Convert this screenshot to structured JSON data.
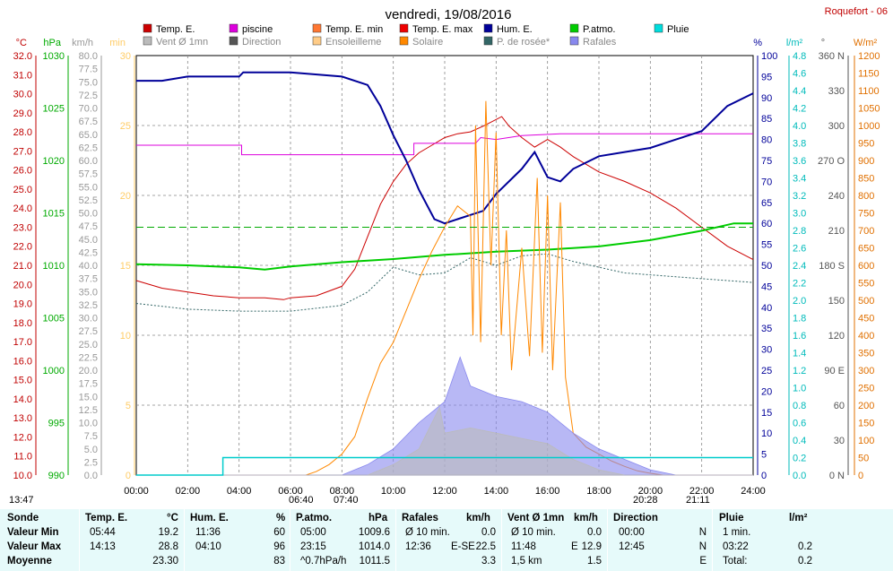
{
  "header": {
    "title": "vendredi, 19/08/2016",
    "station": "Roquefort - 06"
  },
  "legend": [
    {
      "label": "Temp. E.",
      "color": "#cc0000"
    },
    {
      "label": "piscine",
      "color": "#dd00dd"
    },
    {
      "label": "Temp. E. min",
      "color": "#ff7733"
    },
    {
      "label": "Temp. E. max",
      "color": "#ee0000"
    },
    {
      "label": "Hum. E.",
      "color": "#000099"
    },
    {
      "label": "P.atmo.",
      "color": "#00cc00"
    },
    {
      "label": "Pluie",
      "color": "#00dddd"
    },
    {
      "label": "Vent Ø 1mn",
      "color": "#bbbbbb"
    },
    {
      "label": "Direction",
      "color": "#555555"
    },
    {
      "label": "Ensoleilleme",
      "color": "#ffcc88"
    },
    {
      "label": "Solaire",
      "color": "#ff8800"
    },
    {
      "label": "P. de rosée*",
      "color": "#336666"
    },
    {
      "label": "Rafales",
      "color": "#8888ee"
    }
  ],
  "axes_units": {
    "temp": "°C",
    "hpa": "hPa",
    "kmh": "km/h",
    "min": "min",
    "pct": "%",
    "lm2": "l/m²",
    "deg": "°",
    "wm2": "W/m²"
  },
  "sun_times": {
    "sunrise": "06:40",
    "sunset": "20:28",
    "t1": "07:40",
    "t2": "21:11",
    "t3": "13:47"
  },
  "chart_data": {
    "type": "line",
    "x_ticks": [
      "00:00",
      "02:00",
      "04:00",
      "06:00",
      "08:00",
      "10:00",
      "12:00",
      "14:00",
      "16:00",
      "18:00",
      "20:00",
      "22:00",
      "24:00"
    ],
    "x_range_hours": [
      0,
      24
    ],
    "axes": {
      "temp_c": {
        "range": [
          10.0,
          32.0
        ],
        "step": 1.0
      },
      "pressure_hpa": {
        "range": [
          990,
          1030
        ],
        "step": 5
      },
      "wind_kmh": {
        "range": [
          0.0,
          80.0
        ],
        "step": 2.5
      },
      "sun_min": {
        "range": [
          0,
          30
        ],
        "step": 5
      },
      "humidity_pct": {
        "range": [
          0,
          100
        ],
        "step": 5
      },
      "rain_lm2": {
        "range": [
          0.0,
          4.8
        ],
        "step": 0.2
      },
      "direction_deg": {
        "range": [
          0,
          360
        ],
        "step": 30,
        "labels": {
          "0": "N",
          "90": "E",
          "180": "S",
          "270": "O",
          "360": "N"
        }
      },
      "solar_wm2": {
        "range": [
          0,
          1200
        ],
        "step": 50
      }
    },
    "series": [
      {
        "name": "Temp. E.",
        "axis": "temp_c",
        "points": [
          [
            0,
            20.2
          ],
          [
            1,
            19.8
          ],
          [
            2,
            19.6
          ],
          [
            3,
            19.4
          ],
          [
            4,
            19.3
          ],
          [
            5,
            19.3
          ],
          [
            5.73,
            19.2
          ],
          [
            6,
            19.3
          ],
          [
            7,
            19.4
          ],
          [
            8,
            19.9
          ],
          [
            8.5,
            20.8
          ],
          [
            9,
            22.5
          ],
          [
            9.5,
            24.2
          ],
          [
            10,
            25.4
          ],
          [
            10.5,
            26.3
          ],
          [
            11,
            26.9
          ],
          [
            11.5,
            27.3
          ],
          [
            12,
            27.7
          ],
          [
            12.5,
            27.9
          ],
          [
            13,
            28.0
          ],
          [
            13.5,
            28.3
          ],
          [
            14.22,
            28.8
          ],
          [
            14.5,
            28.3
          ],
          [
            15,
            27.7
          ],
          [
            15.5,
            27.2
          ],
          [
            16,
            27.6
          ],
          [
            16.5,
            27.2
          ],
          [
            17,
            26.7
          ],
          [
            17.5,
            26.3
          ],
          [
            18,
            25.9
          ],
          [
            19,
            25.4
          ],
          [
            20,
            24.8
          ],
          [
            21,
            24.0
          ],
          [
            22,
            23.0
          ],
          [
            23,
            22.0
          ],
          [
            24,
            21.3
          ]
        ]
      },
      {
        "name": "piscine",
        "axis": "temp_c",
        "points": [
          [
            0,
            27.3
          ],
          [
            4.1,
            27.3
          ],
          [
            4.1,
            26.8
          ],
          [
            10.8,
            26.8
          ],
          [
            10.8,
            27.4
          ],
          [
            13.2,
            27.4
          ],
          [
            13.4,
            27.7
          ],
          [
            14,
            27.6
          ],
          [
            15,
            27.8
          ],
          [
            16.5,
            27.9
          ],
          [
            24,
            27.9
          ]
        ]
      },
      {
        "name": "Hum. E.",
        "axis": "humidity_pct",
        "points": [
          [
            0,
            94
          ],
          [
            1,
            94
          ],
          [
            2,
            95
          ],
          [
            3,
            95
          ],
          [
            4,
            95
          ],
          [
            4.16,
            96
          ],
          [
            6,
            96
          ],
          [
            8,
            95
          ],
          [
            9,
            93
          ],
          [
            9.5,
            88
          ],
          [
            10,
            81
          ],
          [
            10.5,
            75
          ],
          [
            11,
            68
          ],
          [
            11.6,
            61
          ],
          [
            12,
            60
          ],
          [
            12.5,
            61
          ],
          [
            13,
            62
          ],
          [
            13.5,
            63
          ],
          [
            14,
            67
          ],
          [
            14.5,
            70
          ],
          [
            15,
            73
          ],
          [
            15.5,
            77
          ],
          [
            16,
            71
          ],
          [
            16.5,
            70
          ],
          [
            17,
            73
          ],
          [
            18,
            76
          ],
          [
            19,
            77
          ],
          [
            20,
            78
          ],
          [
            21,
            80
          ],
          [
            22,
            82
          ],
          [
            23,
            88
          ],
          [
            24,
            91
          ]
        ]
      },
      {
        "name": "P.atmo.",
        "axis": "pressure_hpa",
        "points": [
          [
            0,
            1010.1
          ],
          [
            2,
            1010.0
          ],
          [
            4,
            1009.8
          ],
          [
            5,
            1009.6
          ],
          [
            6,
            1009.9
          ],
          [
            8,
            1010.3
          ],
          [
            10,
            1010.6
          ],
          [
            12,
            1011.0
          ],
          [
            14,
            1011.3
          ],
          [
            16,
            1011.5
          ],
          [
            18,
            1011.8
          ],
          [
            20,
            1012.4
          ],
          [
            22,
            1013.3
          ],
          [
            23.25,
            1014.0
          ],
          [
            24,
            1014.0
          ]
        ]
      },
      {
        "name": "P. de rosée*",
        "axis": "temp_c",
        "points": [
          [
            0,
            19.0
          ],
          [
            2,
            18.7
          ],
          [
            4,
            18.6
          ],
          [
            6,
            18.6
          ],
          [
            8,
            18.9
          ],
          [
            9,
            19.6
          ],
          [
            10,
            20.9
          ],
          [
            11,
            20.5
          ],
          [
            12,
            20.6
          ],
          [
            13,
            21.4
          ],
          [
            14,
            21.0
          ],
          [
            15,
            21.5
          ],
          [
            16,
            21.6
          ],
          [
            17,
            21.2
          ],
          [
            18,
            20.9
          ],
          [
            19,
            20.6
          ],
          [
            20,
            20.5
          ],
          [
            21,
            20.4
          ],
          [
            22,
            20.3
          ],
          [
            23,
            20.2
          ],
          [
            24,
            20.1
          ]
        ]
      },
      {
        "name": "Solaire",
        "axis": "solar_wm2",
        "points": [
          [
            0,
            0
          ],
          [
            6.6,
            0
          ],
          [
            7,
            10
          ],
          [
            7.5,
            30
          ],
          [
            8,
            60
          ],
          [
            8.5,
            110
          ],
          [
            9,
            220
          ],
          [
            9.5,
            320
          ],
          [
            10,
            380
          ],
          [
            10.5,
            470
          ],
          [
            11,
            560
          ],
          [
            11.5,
            640
          ],
          [
            12,
            710
          ],
          [
            12.5,
            770
          ],
          [
            13,
            740
          ],
          [
            13.1,
            400
          ],
          [
            13.2,
            1000
          ],
          [
            13.4,
            380
          ],
          [
            13.6,
            1070
          ],
          [
            13.8,
            600
          ],
          [
            14,
            980
          ],
          [
            14.2,
            400
          ],
          [
            14.4,
            700
          ],
          [
            14.6,
            300
          ],
          [
            15,
            650
          ],
          [
            15.3,
            340
          ],
          [
            15.6,
            850
          ],
          [
            15.8,
            350
          ],
          [
            16,
            800
          ],
          [
            16.2,
            300
          ],
          [
            16.5,
            780
          ],
          [
            16.7,
            280
          ],
          [
            17,
            120
          ],
          [
            17.5,
            80
          ],
          [
            18,
            60
          ],
          [
            18.5,
            40
          ],
          [
            19,
            25
          ],
          [
            19.5,
            12
          ],
          [
            20,
            5
          ],
          [
            20.5,
            0
          ],
          [
            24,
            0
          ]
        ]
      },
      {
        "name": "Rafales",
        "axis": "wind_kmh",
        "points": [
          [
            0,
            0
          ],
          [
            8,
            0
          ],
          [
            9,
            2
          ],
          [
            10,
            5
          ],
          [
            11,
            10
          ],
          [
            12,
            14
          ],
          [
            12.6,
            22.5
          ],
          [
            13,
            17
          ],
          [
            14,
            15
          ],
          [
            15,
            14
          ],
          [
            16,
            12
          ],
          [
            17,
            8
          ],
          [
            18,
            5
          ],
          [
            19,
            3
          ],
          [
            20,
            1
          ],
          [
            21,
            0
          ],
          [
            24,
            0
          ]
        ]
      },
      {
        "name": "Vent Ø 1mn",
        "axis": "wind_kmh",
        "points": [
          [
            0,
            0
          ],
          [
            9,
            0
          ],
          [
            10,
            2
          ],
          [
            11,
            5
          ],
          [
            11.8,
            12.9
          ],
          [
            12,
            8
          ],
          [
            13,
            9
          ],
          [
            14,
            8
          ],
          [
            15,
            7
          ],
          [
            16,
            6
          ],
          [
            17,
            3
          ],
          [
            18,
            1
          ],
          [
            19,
            0
          ],
          [
            24,
            0
          ]
        ]
      },
      {
        "name": "Pluie",
        "axis": "rain_lm2",
        "points": [
          [
            0,
            0
          ],
          [
            3.37,
            0
          ],
          [
            3.37,
            0.2
          ],
          [
            24,
            0.2
          ]
        ]
      },
      {
        "name": "Temp. E. (dashed ref)",
        "axis": "temp_c",
        "points": [
          [
            0,
            23.0
          ],
          [
            24,
            23.0
          ]
        ]
      }
    ]
  },
  "summary": {
    "headers": [
      {
        "name": "Sonde",
        "unit": ""
      },
      {
        "name": "Temp. E.",
        "unit": "°C"
      },
      {
        "name": "Hum. E.",
        "unit": "%"
      },
      {
        "name": "P.atmo.",
        "unit": "hPa"
      },
      {
        "name": "Rafales",
        "unit": "km/h"
      },
      {
        "name": "Vent Ø 1mn",
        "unit": "km/h"
      },
      {
        "name": "Direction",
        "unit": ""
      },
      {
        "name": "Pluie",
        "unit": "l/m²"
      }
    ],
    "rows": [
      {
        "label": "Valeur Min",
        "temp_time": "05:44",
        "temp_val": "19.2",
        "hum_time": "11:36",
        "hum_val": "60",
        "p_time": "05:00",
        "p_val": "1009.6",
        "raf_time": "Ø 10 min.",
        "raf_val": "0.0",
        "vent_time": "Ø 10 min.",
        "vent_val": "0.0",
        "dir_time": "00:00",
        "dir_val": "N",
        "pluie_time": "1 min.",
        "pluie_val": ""
      },
      {
        "label": "Valeur Max",
        "temp_time": "14:13",
        "temp_val": "28.8",
        "hum_time": "04:10",
        "hum_val": "96",
        "p_time": "23:15",
        "p_val": "1014.0",
        "raf_time": "12:36",
        "raf_dir": "E-SE",
        "raf_val": "22.5",
        "vent_time": "11:48",
        "vent_dir": "E",
        "vent_val": "12.9",
        "dir_time": "12:45",
        "dir_val": "N",
        "pluie_time": "03:22",
        "pluie_val": "0.2"
      },
      {
        "label": "Moyenne",
        "temp_time": "",
        "temp_val": "23.30",
        "hum_time": "",
        "hum_val": "83",
        "p_time": "^0.7hPa/h",
        "p_val": "1011.5",
        "raf_time": "",
        "raf_val": "3.3",
        "vent_time": "1,5 km",
        "vent_val": "1.5",
        "dir_time": "",
        "dir_val": "E",
        "pluie_time": "Total:",
        "pluie_val": "0.2"
      }
    ]
  }
}
